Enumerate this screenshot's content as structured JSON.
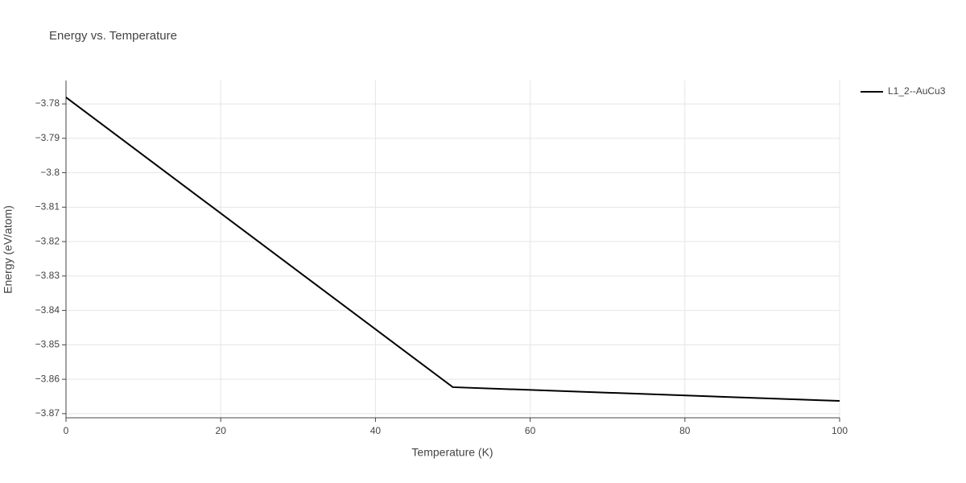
{
  "chart_data": {
    "type": "line",
    "title": "Energy vs. Temperature",
    "x_label": "Temperature (K)",
    "y_label": "Energy (eV/atom)",
    "x": [
      0,
      50,
      100
    ],
    "series": [
      {
        "name": "L1_2--AuCu3",
        "color": "#000000",
        "values": [
          -3.7781,
          -3.8623,
          -3.8663
        ]
      }
    ],
    "xlim": [
      0,
      100
    ],
    "ylim": [
      -3.8712,
      -3.7732
    ],
    "xticks": [
      0,
      20,
      40,
      60,
      80,
      100
    ],
    "yticks": [
      {
        "value": -3.78,
        "label": "−3.78"
      },
      {
        "value": -3.79,
        "label": "−3.79"
      },
      {
        "value": -3.8,
        "label": "−3.8"
      },
      {
        "value": -3.81,
        "label": "−3.81"
      },
      {
        "value": -3.82,
        "label": "−3.82"
      },
      {
        "value": -3.83,
        "label": "−3.83"
      },
      {
        "value": -3.84,
        "label": "−3.84"
      },
      {
        "value": -3.85,
        "label": "−3.85"
      },
      {
        "value": -3.86,
        "label": "−3.86"
      },
      {
        "value": -3.87,
        "label": "−3.87"
      }
    ],
    "grid": true,
    "legend": "right"
  }
}
